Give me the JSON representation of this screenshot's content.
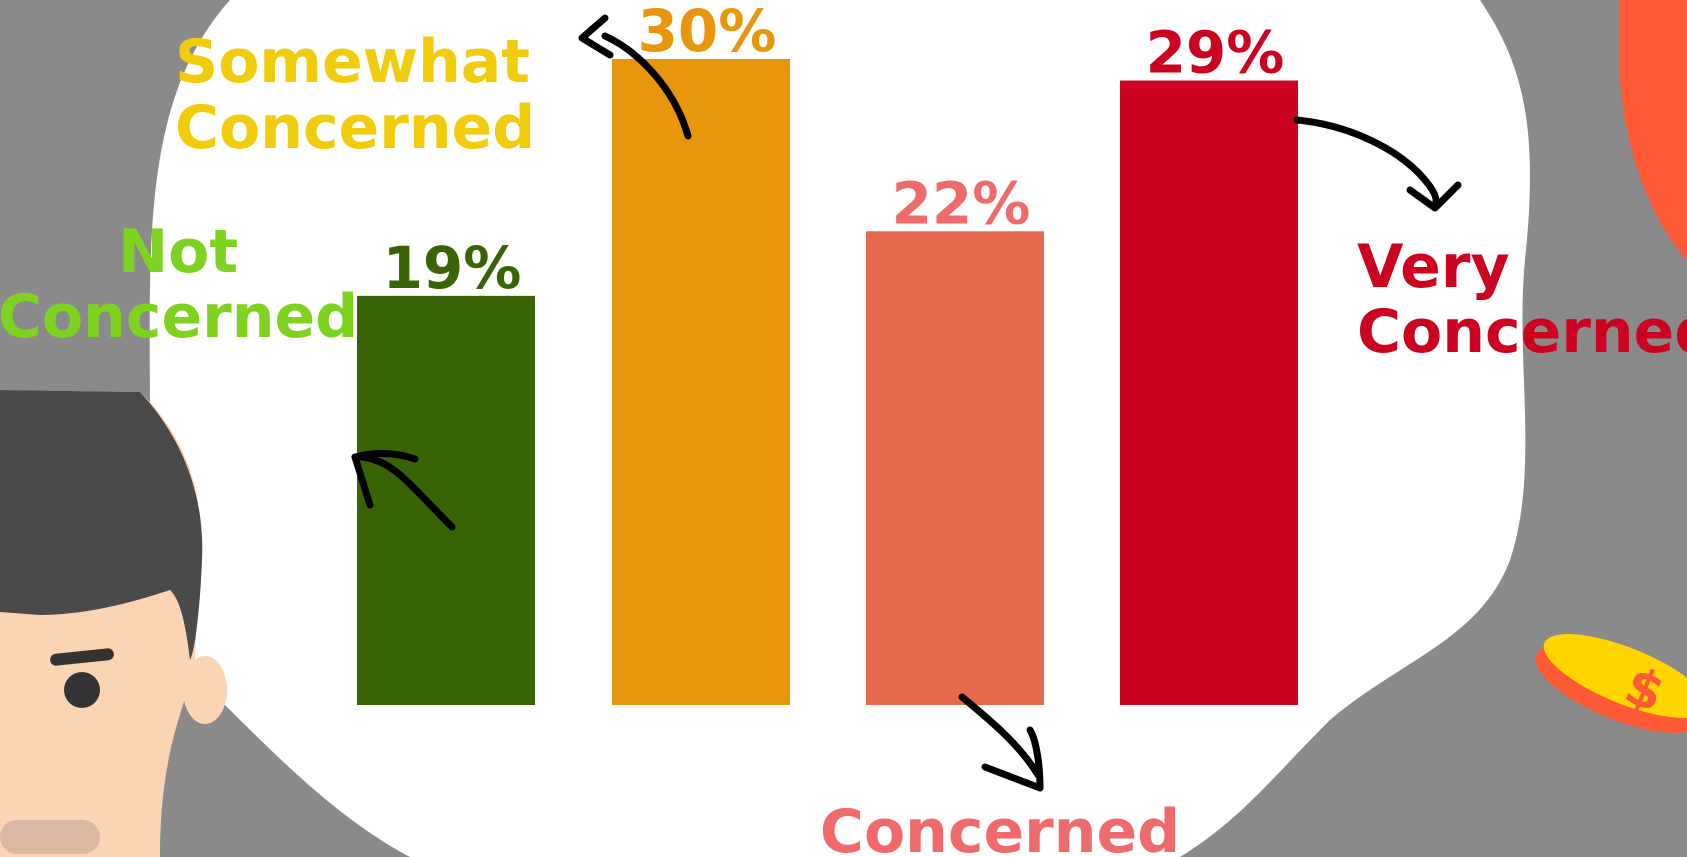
{
  "colors": {
    "background": "#8a8a8a",
    "blob": "#ffffff",
    "not_concerned_bar": "#386405",
    "not_concerned_label": "#7ed321",
    "somewhat_bar": "#e8960c",
    "somewhat_label": "#f0cc0a",
    "concerned_bar": "#e66a4e",
    "concerned_label": "#ef6a6a",
    "very_bar": "#cc0320",
    "very_label": "#cc0320",
    "arrow": "#000000",
    "coin": "#ffd400",
    "coin_edge": "#ff5a36",
    "skin": "#fbd4b4",
    "hair": "#4a4a4a"
  },
  "chart_data": {
    "type": "bar",
    "categories": [
      "Not Concerned",
      "Somewhat Concerned",
      "Concerned",
      "Very Concerned"
    ],
    "values": [
      19,
      30,
      22,
      29
    ],
    "value_labels": [
      "19%",
      "30%",
      "22%",
      "29%"
    ],
    "ylim": [
      0,
      30
    ],
    "grid": false,
    "category_labels": [
      [
        "Not",
        "Concerned"
      ],
      [
        "Somewhat",
        "Concerned"
      ],
      [
        "Concerned"
      ],
      [
        "Very",
        "Concerned"
      ]
    ]
  },
  "decorations": {
    "person_icon": "worried-person-icon",
    "coin_icon": "dollar-coin-icon",
    "arrow_icon": "curved-arrow-icon"
  }
}
